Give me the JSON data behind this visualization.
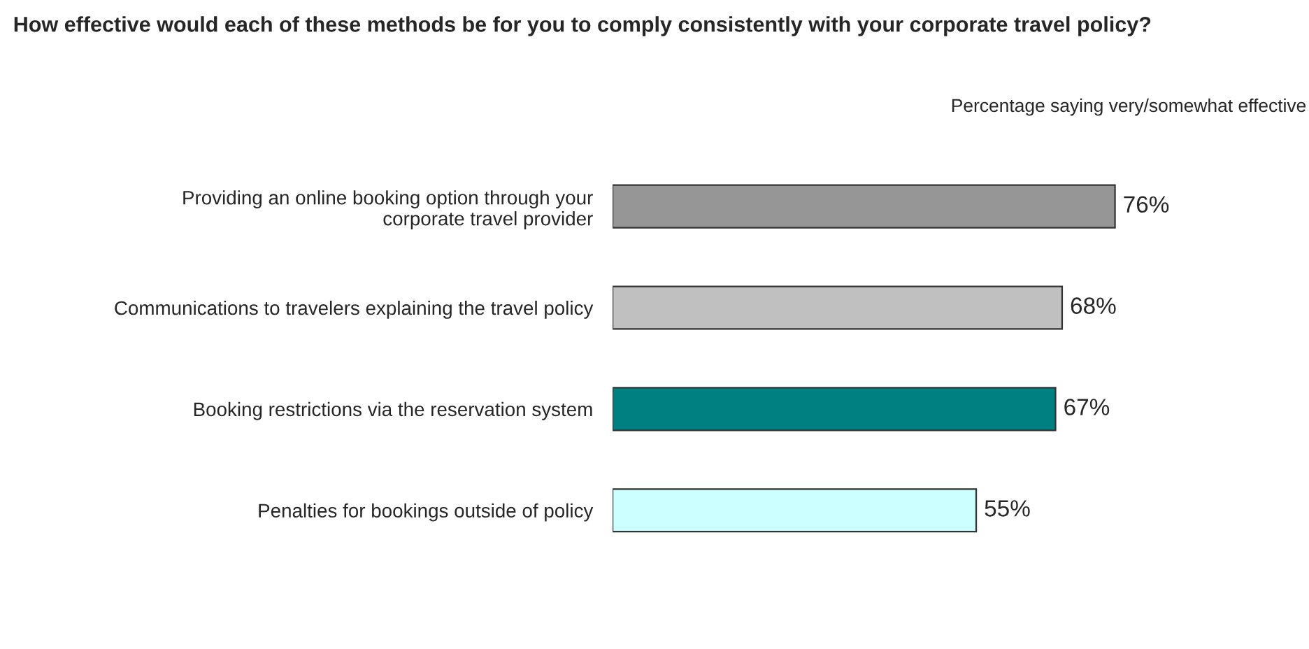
{
  "chart_data": {
    "type": "bar",
    "orientation": "horizontal",
    "title": "How effective would each of these methods be for you to comply consistently with your corporate travel policy?",
    "subtitle": "Percentage saying very/somewhat effective",
    "categories": [
      "Providing an online booking option through your\ncorporate travel provider",
      "Communications to travelers explaining the travel policy",
      "Booking restrictions via the reservation system",
      "Penalties for bookings outside of policy"
    ],
    "values": [
      76,
      68,
      67,
      55
    ],
    "colors": [
      "#969696",
      "#c0c0c0",
      "#008080",
      "#ccffff"
    ],
    "value_labels": [
      "76%",
      "68%",
      "67%",
      "55%"
    ],
    "grid": false,
    "legend": false
  }
}
